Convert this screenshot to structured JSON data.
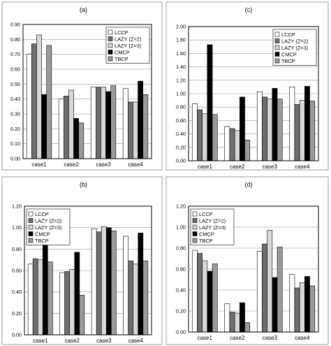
{
  "series_styles": [
    {
      "fill": "#ffffff"
    },
    {
      "fill": "#6e6e6e"
    },
    {
      "fill": "#d8d8d8"
    },
    {
      "fill": "#000000"
    },
    {
      "fill": "#9a9a9a"
    }
  ],
  "chart_data": [
    {
      "type": "bar",
      "title": "(a)",
      "categories": [
        "case1",
        "case2",
        "case3",
        "case4"
      ],
      "ylim": [
        0,
        0.9
      ],
      "yticks": [
        "0.00",
        "0.10",
        "0.20",
        "0.30",
        "0.40",
        "0.50",
        "0.60",
        "0.70",
        "0.80",
        "0.90"
      ],
      "grid": true,
      "legend": "top-right",
      "series": [
        {
          "name": "LCCP",
          "values": [
            0.7,
            0.4,
            0.48,
            0.47
          ]
        },
        {
          "name": "LAZY (Z=2)",
          "values": [
            0.77,
            0.42,
            0.48,
            0.38
          ]
        },
        {
          "name": "LAZY (Z=3)",
          "values": [
            0.83,
            0.46,
            0.48,
            0.38
          ]
        },
        {
          "name": "CMCP",
          "values": [
            0.43,
            0.27,
            0.45,
            0.52
          ]
        },
        {
          "name": "TBCP",
          "values": [
            0.76,
            0.24,
            0.49,
            0.43
          ]
        }
      ]
    },
    {
      "type": "bar",
      "title": "(c)",
      "categories": [
        "case1",
        "case2",
        "case3",
        "case4"
      ],
      "ylim": [
        0,
        2.0
      ],
      "yticks": [
        "0.00",
        "0.20",
        "0.40",
        "0.60",
        "0.80",
        "1.00",
        "1.20",
        "1.40",
        "1.60",
        "1.80",
        "2.00"
      ],
      "grid": true,
      "legend": "top-right",
      "series": [
        {
          "name": "LCCP",
          "values": [
            0.85,
            0.51,
            1.03,
            1.1
          ]
        },
        {
          "name": "LAZY (Z=2)",
          "values": [
            0.76,
            0.48,
            0.95,
            0.84
          ]
        },
        {
          "name": "LAZY (Z=3)",
          "values": [
            0.7,
            0.45,
            0.92,
            0.9
          ]
        },
        {
          "name": "CMCP",
          "values": [
            1.73,
            0.95,
            1.08,
            1.11
          ]
        },
        {
          "name": "TBCP",
          "values": [
            0.69,
            0.31,
            0.92,
            0.89
          ]
        }
      ]
    },
    {
      "type": "bar",
      "title": "(b)",
      "categories": [
        "case1",
        "case2",
        "case3",
        "case4"
      ],
      "ylim": [
        0,
        1.2
      ],
      "yticks": [
        "0.00",
        "0.20",
        "0.40",
        "0.60",
        "0.80",
        "1.00",
        "1.20"
      ],
      "grid": true,
      "legend": "top-left",
      "series": [
        {
          "name": "LCCP",
          "values": [
            0.66,
            0.58,
            0.99,
            0.92
          ]
        },
        {
          "name": "LAZY (Z=2)",
          "values": [
            0.71,
            0.59,
            0.96,
            0.69
          ]
        },
        {
          "name": "LAZY (Z=3)",
          "values": [
            0.7,
            0.61,
            1.01,
            0.66
          ]
        },
        {
          "name": "CMCP",
          "values": [
            0.88,
            0.77,
            1.0,
            0.95
          ]
        },
        {
          "name": "TBCP",
          "values": [
            0.68,
            0.37,
            0.97,
            0.69
          ]
        }
      ]
    },
    {
      "type": "bar",
      "title": "(d)",
      "categories": [
        "case1",
        "case2",
        "case3",
        "case4"
      ],
      "ylim": [
        0,
        1.2
      ],
      "yticks": [
        "0.00",
        "0.20",
        "0.40",
        "0.60",
        "0.80",
        "1.00",
        "1.20"
      ],
      "grid": true,
      "legend": "top-left",
      "series": [
        {
          "name": "LCCP",
          "values": [
            0.78,
            0.27,
            0.77,
            0.55
          ]
        },
        {
          "name": "LAZY (Z=2)",
          "values": [
            0.75,
            0.19,
            0.84,
            0.42
          ]
        },
        {
          "name": "LAZY (Z=3)",
          "values": [
            0.68,
            0.18,
            0.97,
            0.47
          ]
        },
        {
          "name": "CMCP",
          "values": [
            0.58,
            0.28,
            0.52,
            0.53
          ]
        },
        {
          "name": "TBCP",
          "values": [
            0.65,
            0.09,
            0.81,
            0.44
          ]
        }
      ]
    }
  ]
}
